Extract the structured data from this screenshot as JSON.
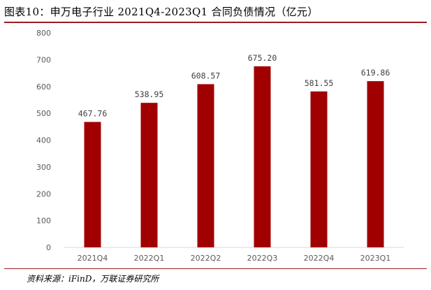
{
  "title": "图表10：申万电子行业 2021Q4-2023Q1 合同负债情况（亿元）",
  "source": "资料来源：iFinD，万联证券研究所",
  "colors": {
    "bar": "#a00000",
    "rule": "#9b1c22",
    "axis": "#d9d9d9"
  },
  "chart_data": {
    "type": "bar",
    "title": "",
    "xlabel": "",
    "ylabel": "",
    "categories": [
      "2021Q4",
      "2022Q1",
      "2022Q2",
      "2022Q3",
      "2022Q4",
      "2023Q1"
    ],
    "values": [
      467.76,
      538.95,
      608.57,
      675.2,
      581.55,
      619.86
    ],
    "value_labels": [
      "467.76",
      "538.95",
      "608.57",
      "675.20",
      "581.55",
      "619.86"
    ],
    "ylim": [
      0,
      800
    ],
    "yticks": [
      0,
      100,
      200,
      300,
      400,
      500,
      600,
      700,
      800
    ],
    "grid": false,
    "legend": "none"
  }
}
